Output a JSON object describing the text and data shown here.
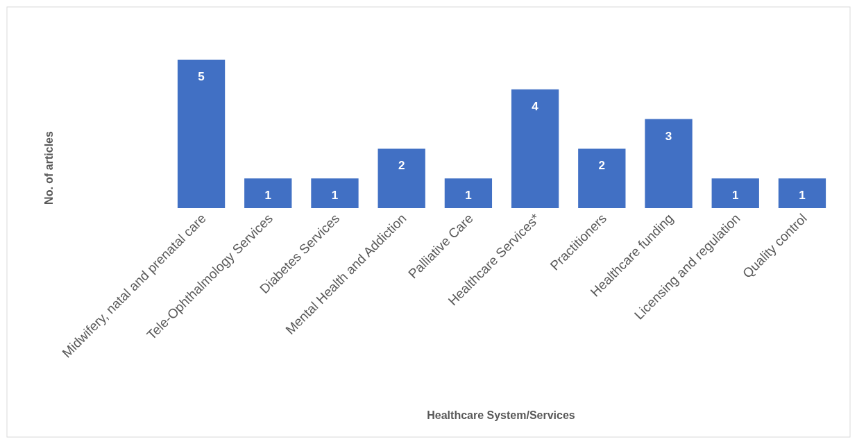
{
  "chart_data": {
    "type": "bar",
    "xlabel": "Healthcare System/Services",
    "ylabel": "No. of articles",
    "categories": [
      "Midwifery, natal and prenatal care",
      "Tele-Ophthalmology Services",
      "Diabetes Services",
      "Mental Health and Addiction",
      "Palliative Care",
      "Healthcare Services*",
      "Practitioners",
      "Healthcare funding",
      "Licensing and regulation",
      "Quality control"
    ],
    "values": [
      5,
      1,
      1,
      2,
      1,
      4,
      2,
      3,
      1,
      1
    ],
    "color": "#4170c4",
    "data_labels": true
  }
}
